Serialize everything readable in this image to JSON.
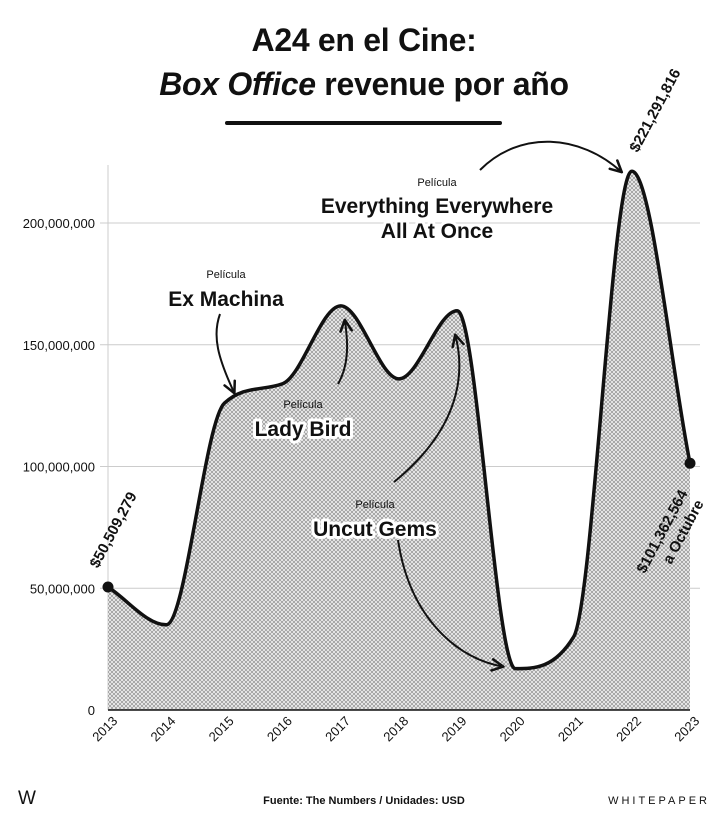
{
  "header": {
    "title_line1": "A24 en el Cine:",
    "title_line2_italic": "Box Office",
    "title_line2_rest": " revenue por año"
  },
  "chart_data": {
    "type": "area",
    "title": "A24 en el Cine: Box Office revenue por año",
    "x": [
      "2013",
      "2014",
      "2015",
      "2016",
      "2017",
      "2018",
      "2019",
      "2020",
      "2021",
      "2022",
      "2023"
    ],
    "values": [
      50509279,
      35000000,
      126000000,
      134000000,
      166000000,
      136000000,
      164000000,
      17000000,
      30000000,
      221291816,
      101362564
    ],
    "ylim": [
      0,
      230000000
    ],
    "y_ticks": [
      0,
      50000000,
      100000000,
      150000000,
      200000000
    ],
    "y_tick_labels": [
      "0",
      "50,000,000",
      "100,000,000",
      "150,000,000",
      "200,000,000"
    ],
    "grid": true,
    "fill_pattern": "crosshatch",
    "value_labels": [
      {
        "text": "$50,509,279",
        "x": "2013"
      },
      {
        "text": "$221,291,816",
        "x": "2022"
      },
      {
        "text": "$101,362,564",
        "subtext": "a Octubre",
        "x": "2023"
      }
    ],
    "annotations": [
      {
        "kicker": "Película",
        "title": "Ex Machina",
        "x": "2015"
      },
      {
        "kicker": "Película",
        "title": "Lady Bird",
        "x": "2017"
      },
      {
        "kicker": "Película",
        "title": "Uncut Gems",
        "x": "2019"
      },
      {
        "kicker": "Película",
        "title_line1": "Everything Everywhere",
        "title_line2": "All At Once",
        "x": "2022"
      }
    ],
    "colors": {
      "line": "#111111",
      "grid": "#cccccc",
      "fill": "#9a9a9a"
    }
  },
  "footer": {
    "logo": "W",
    "source": "Fuente: The Numbers / Unidades: USD",
    "brand": "WHITEPAPER"
  }
}
